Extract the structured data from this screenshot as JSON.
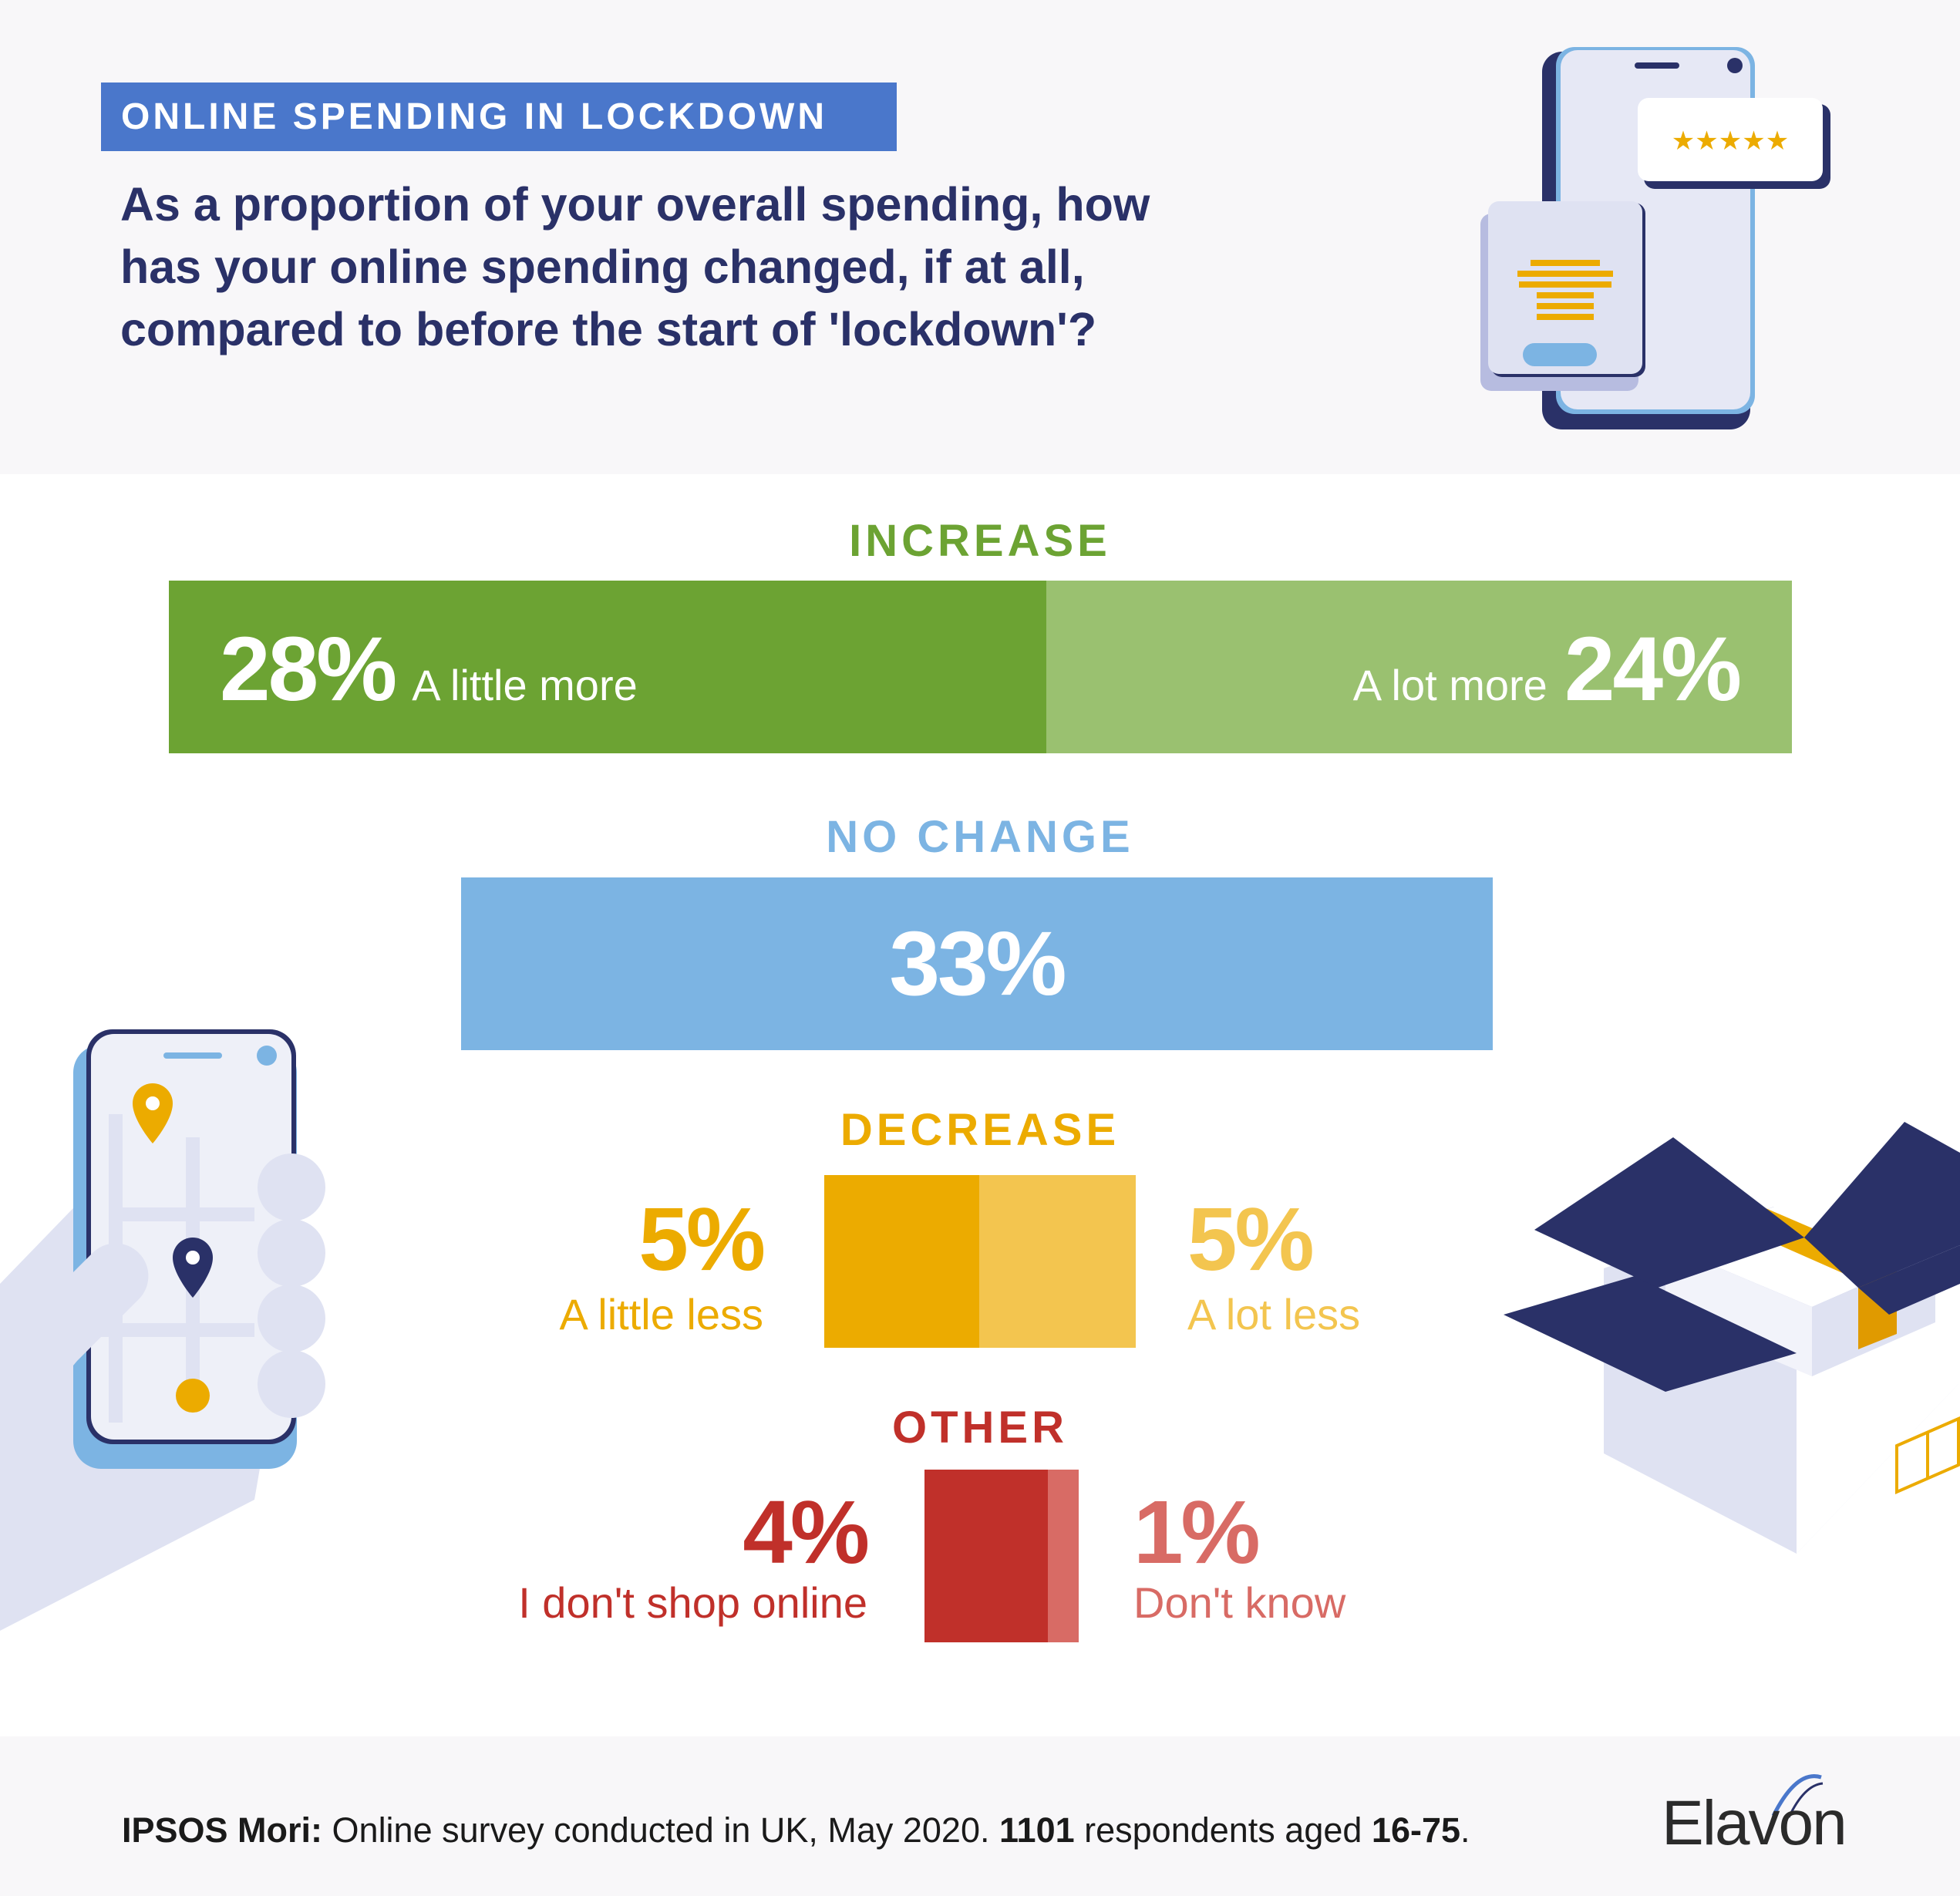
{
  "header": {
    "tag": "ONLINE SPENDING IN LOCKDOWN",
    "question_lines": [
      "As a proportion of your overall spending, how",
      "has your online spending changed, if at all,",
      "compared to before the start of 'lockdown'?"
    ]
  },
  "chart_data": {
    "type": "bar",
    "groups": [
      {
        "name": "INCREASE",
        "color": "#6ca333",
        "items": [
          {
            "label": "A little more",
            "value": 28,
            "display": "28%",
            "color": "#6ca333"
          },
          {
            "label": "A lot more",
            "value": 24,
            "display": "24%",
            "color": "#9ac170"
          }
        ]
      },
      {
        "name": "NO CHANGE",
        "color": "#7cb4e3",
        "items": [
          {
            "label": "",
            "value": 33,
            "display": "33%",
            "color": "#7cb4e3"
          }
        ]
      },
      {
        "name": "DECREASE",
        "color": "#ecab00",
        "items": [
          {
            "label": "A little less",
            "value": 5,
            "display": "5%",
            "color": "#ecab00"
          },
          {
            "label": "A lot less",
            "value": 5,
            "display": "5%",
            "color": "#f3c54f"
          }
        ]
      },
      {
        "name": "OTHER",
        "color": "#c0302a",
        "items": [
          {
            "label": "I don't shop online",
            "value": 4,
            "display": "4%",
            "color": "#c0302a"
          },
          {
            "label": "Don't know",
            "value": 1,
            "display": "1%",
            "color": "#d86b65"
          }
        ]
      }
    ]
  },
  "footer": {
    "source_bold": "IPSOS Mori:",
    "source_text_1": " Online survey conducted in UK, May 2020. ",
    "respondents": "1101",
    "source_text_2": " respondents aged ",
    "ages": "16-75",
    "source_text_3": ".",
    "logo": "Elavon"
  },
  "illustrations": {
    "top_right": "phone-shopping-icon",
    "rating": "five-star-icon",
    "left": "hand-phone-map-icon",
    "right": "open-box-icon"
  }
}
